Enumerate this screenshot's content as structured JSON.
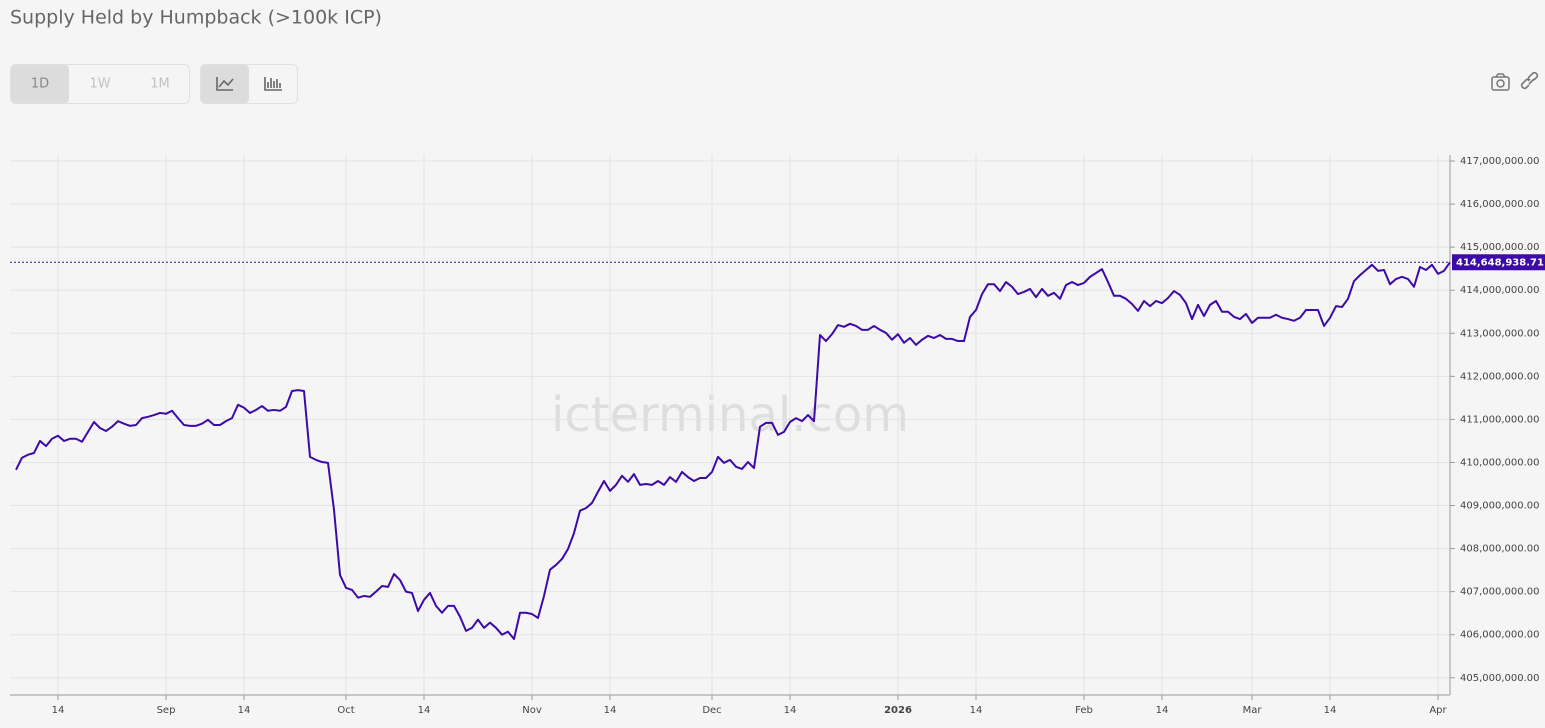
{
  "chart_data": {
    "type": "line",
    "title": "Supply Held by Humpback (>100k ICP)",
    "watermark": "icterminal.com",
    "x": [
      "2025-08-07",
      "2025-08-08",
      "2025-08-09",
      "2025-08-10",
      "2025-08-11",
      "2025-08-12",
      "2025-08-13",
      "2025-08-14",
      "2025-08-15",
      "2025-08-16",
      "2025-08-17",
      "2025-08-18",
      "2025-08-19",
      "2025-08-20",
      "2025-08-21",
      "2025-08-22",
      "2025-08-23",
      "2025-08-24",
      "2025-08-25",
      "2025-08-26",
      "2025-08-27",
      "2025-08-28",
      "2025-08-29",
      "2025-08-30",
      "2025-08-31",
      "2025-09-01",
      "2025-09-02",
      "2025-09-03",
      "2025-09-04",
      "2025-09-05",
      "2025-09-06",
      "2025-09-07",
      "2025-09-08",
      "2025-09-09",
      "2025-09-10",
      "2025-09-11",
      "2025-09-12",
      "2025-09-13",
      "2025-09-14",
      "2025-09-15",
      "2025-09-16",
      "2025-09-17",
      "2025-09-18",
      "2025-09-19",
      "2025-09-20",
      "2025-09-21",
      "2025-09-22",
      "2025-09-23",
      "2025-09-24",
      "2025-09-25",
      "2025-09-26",
      "2025-09-27",
      "2025-09-28",
      "2025-09-29",
      "2025-09-30",
      "2025-10-01",
      "2025-10-02",
      "2025-10-03",
      "2025-10-04",
      "2025-10-05",
      "2025-10-06",
      "2025-10-07",
      "2025-10-08",
      "2025-10-09",
      "2025-10-10",
      "2025-10-11",
      "2025-10-12",
      "2025-10-13",
      "2025-10-14",
      "2025-10-15",
      "2025-10-16",
      "2025-10-17",
      "2025-10-18",
      "2025-10-19",
      "2025-10-20",
      "2025-10-21",
      "2025-10-22",
      "2025-10-23",
      "2025-10-24",
      "2025-10-25",
      "2025-10-26",
      "2025-10-27",
      "2025-10-28",
      "2025-10-29",
      "2025-10-30",
      "2025-10-31",
      "2025-11-01",
      "2025-11-02",
      "2025-11-03",
      "2025-11-04",
      "2025-11-05",
      "2025-11-06",
      "2025-11-07",
      "2025-11-08",
      "2025-11-09",
      "2025-11-10",
      "2025-11-11",
      "2025-11-12",
      "2025-11-13",
      "2025-11-14",
      "2025-11-15",
      "2025-11-16",
      "2025-11-17",
      "2025-11-18",
      "2025-11-19",
      "2025-11-20",
      "2025-11-21",
      "2025-11-22",
      "2025-11-23",
      "2025-11-24",
      "2025-11-25",
      "2025-11-26",
      "2025-11-27",
      "2025-11-28",
      "2025-11-29",
      "2025-11-30",
      "2025-12-01",
      "2025-12-02",
      "2025-12-03",
      "2025-12-04",
      "2025-12-05",
      "2025-12-06",
      "2025-12-07",
      "2025-12-08",
      "2025-12-09",
      "2025-12-10",
      "2025-12-11",
      "2025-12-12",
      "2025-12-13",
      "2025-12-14",
      "2025-12-15",
      "2025-12-16",
      "2025-12-17",
      "2025-12-18",
      "2025-12-19",
      "2025-12-20",
      "2025-12-21",
      "2025-12-22",
      "2025-12-23",
      "2025-12-24",
      "2025-12-25",
      "2025-12-26",
      "2025-12-27",
      "2025-12-28",
      "2025-12-29",
      "2025-12-30",
      "2025-12-31",
      "2026-01-01",
      "2026-01-02",
      "2026-01-03",
      "2026-01-04",
      "2026-01-05",
      "2026-01-06",
      "2026-01-07",
      "2026-01-08",
      "2026-01-09",
      "2026-01-10",
      "2026-01-11",
      "2026-01-12",
      "2026-01-13",
      "2026-01-14",
      "2026-01-15",
      "2026-01-16",
      "2026-01-17",
      "2026-01-18",
      "2026-01-19",
      "2026-01-20",
      "2026-01-21",
      "2026-01-22",
      "2026-01-23",
      "2026-01-24",
      "2026-01-25",
      "2026-01-26",
      "2026-01-27",
      "2026-01-28",
      "2026-01-29",
      "2026-01-30",
      "2026-01-31",
      "2026-02-01",
      "2026-02-02",
      "2026-02-03",
      "2026-02-04",
      "2026-02-05",
      "2026-02-06",
      "2026-02-07",
      "2026-02-08",
      "2026-02-09",
      "2026-02-10",
      "2026-02-11",
      "2026-02-12",
      "2026-02-13",
      "2026-02-14",
      "2026-02-15",
      "2026-02-16",
      "2026-02-17",
      "2026-02-18",
      "2026-02-19",
      "2026-02-20",
      "2026-02-21",
      "2026-02-22",
      "2026-02-23",
      "2026-02-24",
      "2026-02-25",
      "2026-02-26",
      "2026-02-27",
      "2026-02-28",
      "2026-03-01",
      "2026-03-02",
      "2026-03-03",
      "2026-03-04",
      "2026-03-05",
      "2026-03-06",
      "2026-03-07",
      "2026-03-08",
      "2026-03-09",
      "2026-03-10",
      "2026-03-11",
      "2026-03-12",
      "2026-03-13",
      "2026-03-14",
      "2026-03-15",
      "2026-03-16",
      "2026-03-17",
      "2026-03-18",
      "2026-03-19",
      "2026-03-20",
      "2026-03-21",
      "2026-03-22",
      "2026-03-23",
      "2026-03-24",
      "2026-03-25",
      "2026-03-26",
      "2026-03-27",
      "2026-03-28",
      "2026-03-29",
      "2026-03-30",
      "2026-03-31",
      "2026-04-01",
      "2026-04-02",
      "2026-04-03"
    ],
    "series": [
      {
        "color": "#3d0aa8",
        "values": [
          409830000,
          410110000,
          410180000,
          410220000,
          410500000,
          410380000,
          410550000,
          410620000,
          410500000,
          410550000,
          410550000,
          410480000,
          410710000,
          410940000,
          410800000,
          410730000,
          410830000,
          410960000,
          410900000,
          410850000,
          410870000,
          411030000,
          411060000,
          411100000,
          411150000,
          411130000,
          411200000,
          411030000,
          410870000,
          410850000,
          410850000,
          410900000,
          410990000,
          410870000,
          410870000,
          410960000,
          411030000,
          411340000,
          411270000,
          411150000,
          411220000,
          411310000,
          411200000,
          411220000,
          411200000,
          411290000,
          411660000,
          411680000,
          411660000,
          410130000,
          410060000,
          410010000,
          409990000,
          408900000,
          407390000,
          407090000,
          407040000,
          406860000,
          406900000,
          406880000,
          407000000,
          407130000,
          407110000,
          407410000,
          407270000,
          407000000,
          406970000,
          406550000,
          406810000,
          406970000,
          406670000,
          406510000,
          406670000,
          406670000,
          406420000,
          406090000,
          406160000,
          406350000,
          406160000,
          406280000,
          406160000,
          406000000,
          406070000,
          405900000,
          406510000,
          406510000,
          406480000,
          406390000,
          406900000,
          407510000,
          407620000,
          407760000,
          407990000,
          408360000,
          408880000,
          408940000,
          409060000,
          409320000,
          409570000,
          409340000,
          409480000,
          409690000,
          409550000,
          409730000,
          409480000,
          409500000,
          409480000,
          409570000,
          409480000,
          409660000,
          409550000,
          409780000,
          409660000,
          409570000,
          409640000,
          409640000,
          409780000,
          410130000,
          409990000,
          410060000,
          409900000,
          409850000,
          410010000,
          409870000,
          410830000,
          410920000,
          410920000,
          410640000,
          410710000,
          410940000,
          411030000,
          410960000,
          411100000,
          410960000,
          412960000,
          412820000,
          412980000,
          413190000,
          413150000,
          413220000,
          413170000,
          413080000,
          413080000,
          413170000,
          413080000,
          413010000,
          412850000,
          412980000,
          412780000,
          412890000,
          412730000,
          412850000,
          412940000,
          412890000,
          412960000,
          412870000,
          412870000,
          412820000,
          412820000,
          413380000,
          413540000,
          413910000,
          414140000,
          414140000,
          413980000,
          414190000,
          414080000,
          413910000,
          413960000,
          414030000,
          413840000,
          414030000,
          413870000,
          413940000,
          413800000,
          414120000,
          414190000,
          414120000,
          414170000,
          414310000,
          414400000,
          414490000,
          414190000,
          413870000,
          413870000,
          413800000,
          413680000,
          413520000,
          413750000,
          413630000,
          413750000,
          413700000,
          413820000,
          413980000,
          413890000,
          413700000,
          413330000,
          413660000,
          413400000,
          413660000,
          413750000,
          413500000,
          413500000,
          413380000,
          413330000,
          413450000,
          413240000,
          413360000,
          413360000,
          413360000,
          413430000,
          413360000,
          413330000,
          413290000,
          413360000,
          413540000,
          413540000,
          413540000,
          413170000,
          413360000,
          413630000,
          413610000,
          413800000,
          414210000,
          414350000,
          414470000,
          414590000,
          414450000,
          414470000,
          414140000,
          414260000,
          414310000,
          414260000,
          414080000,
          414540000,
          414470000,
          414590000,
          414380000,
          414450000,
          414648938.71
        ]
      }
    ],
    "last_value_label": "414,648,938.71",
    "xlim": [
      "2025-08-06",
      "2026-04-03"
    ],
    "xticks": [
      {
        "value": "2025-08-14",
        "label": "14"
      },
      {
        "value": "2025-09-01",
        "label": "Sep"
      },
      {
        "value": "2025-09-14",
        "label": "14"
      },
      {
        "value": "2025-10-01",
        "label": "Oct"
      },
      {
        "value": "2025-10-14",
        "label": "14"
      },
      {
        "value": "2025-11-01",
        "label": "Nov"
      },
      {
        "value": "2025-11-14",
        "label": "14"
      },
      {
        "value": "2025-12-01",
        "label": "Dec"
      },
      {
        "value": "2025-12-14",
        "label": "14"
      },
      {
        "value": "2026-01-01",
        "label": "2026"
      },
      {
        "value": "2026-01-14",
        "label": "14"
      },
      {
        "value": "2026-02-01",
        "label": "Feb"
      },
      {
        "value": "2026-02-14",
        "label": "14"
      },
      {
        "value": "2026-03-01",
        "label": "Mar"
      },
      {
        "value": "2026-03-14",
        "label": "14"
      },
      {
        "value": "2026-04-01",
        "label": "Apr"
      }
    ],
    "ylim": [
      404600000,
      417140000
    ],
    "yticks": [
      {
        "value": 405000000,
        "label": "405,000,000.00"
      },
      {
        "value": 406000000,
        "label": "406,000,000.00"
      },
      {
        "value": 407000000,
        "label": "407,000,000.00"
      },
      {
        "value": 408000000,
        "label": "408,000,000.00"
      },
      {
        "value": 409000000,
        "label": "409,000,000.00"
      },
      {
        "value": 410000000,
        "label": "410,000,000.00"
      },
      {
        "value": 411000000,
        "label": "411,000,000.00"
      },
      {
        "value": 412000000,
        "label": "412,000,000.00"
      },
      {
        "value": 413000000,
        "label": "413,000,000.00"
      },
      {
        "value": 414000000,
        "label": "414,000,000.00"
      },
      {
        "value": 415000000,
        "label": "415,000,000.00"
      },
      {
        "value": 416000000,
        "label": "416,000,000.00"
      },
      {
        "value": 417000000,
        "label": "417,000,000.00"
      }
    ],
    "grid": true
  },
  "toolbar": {
    "ranges": [
      "1D",
      "1W",
      "1M"
    ]
  }
}
